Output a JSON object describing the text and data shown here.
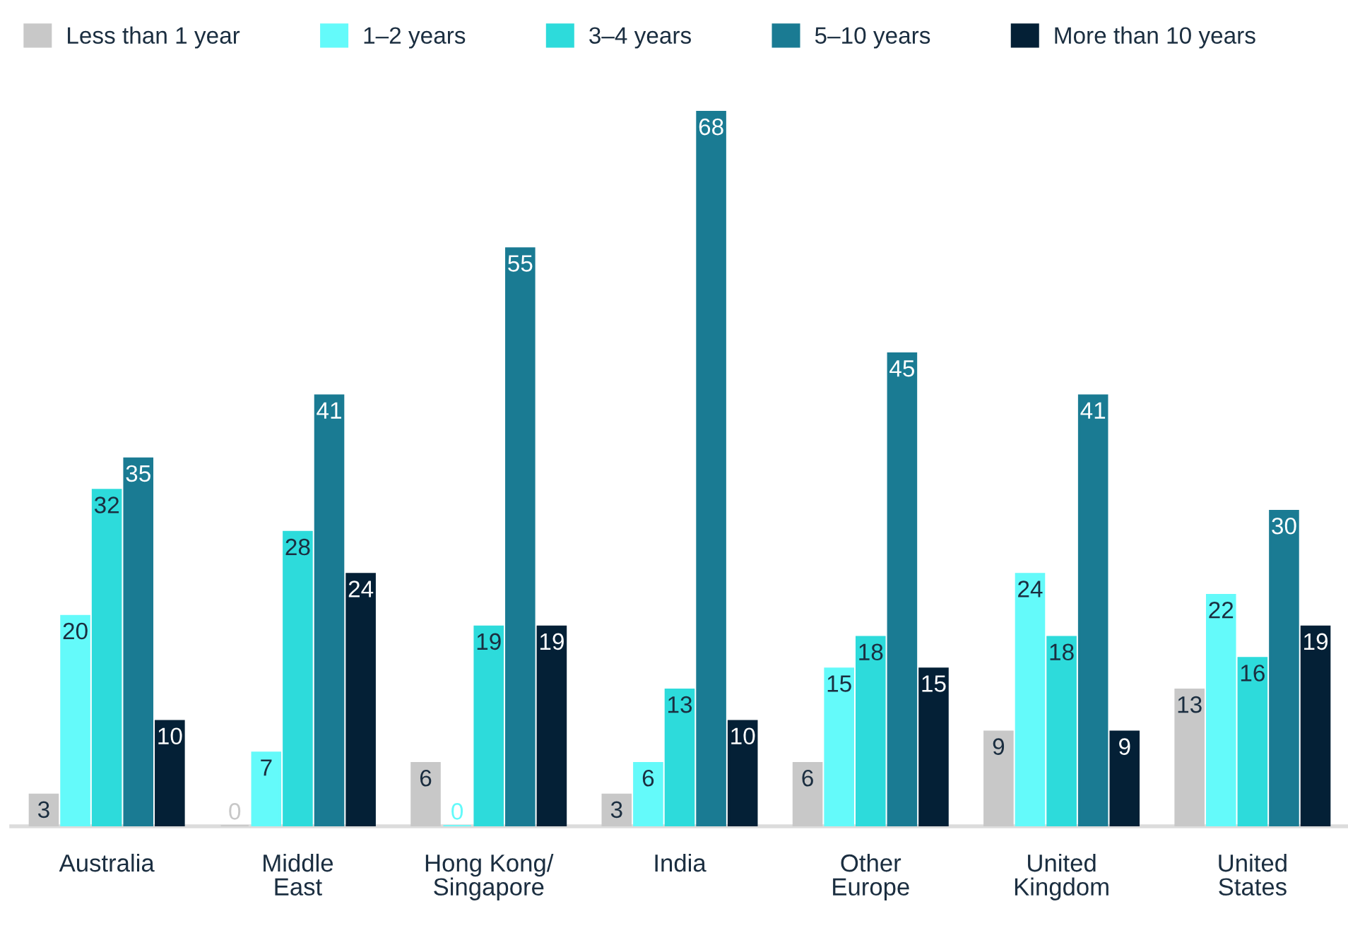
{
  "chart_data": {
    "type": "bar",
    "categories": [
      "Australia",
      "Middle\nEast",
      "Hong Kong/\nSingapore",
      "India",
      "Other\nEurope",
      "United\nKingdom",
      "United\nStates"
    ],
    "series": [
      {
        "name": "Less than 1 year",
        "color": "#c8c8c8",
        "values": [
          3,
          0,
          6,
          3,
          6,
          9,
          13
        ]
      },
      {
        "name": "1–2 years",
        "color": "#64fafa",
        "values": [
          20,
          7,
          0,
          6,
          15,
          24,
          22
        ]
      },
      {
        "name": "3–4 years",
        "color": "#2ddbdb",
        "values": [
          32,
          28,
          19,
          13,
          18,
          18,
          16
        ]
      },
      {
        "name": "5–10 years",
        "color": "#1a7b93",
        "values": [
          35,
          41,
          55,
          68,
          45,
          41,
          30
        ]
      },
      {
        "name": "More than 10 years",
        "color": "#042036",
        "values": [
          10,
          24,
          19,
          10,
          15,
          9,
          19
        ]
      }
    ],
    "data_labels": true,
    "legend": "top",
    "tick_labels": "x"
  }
}
